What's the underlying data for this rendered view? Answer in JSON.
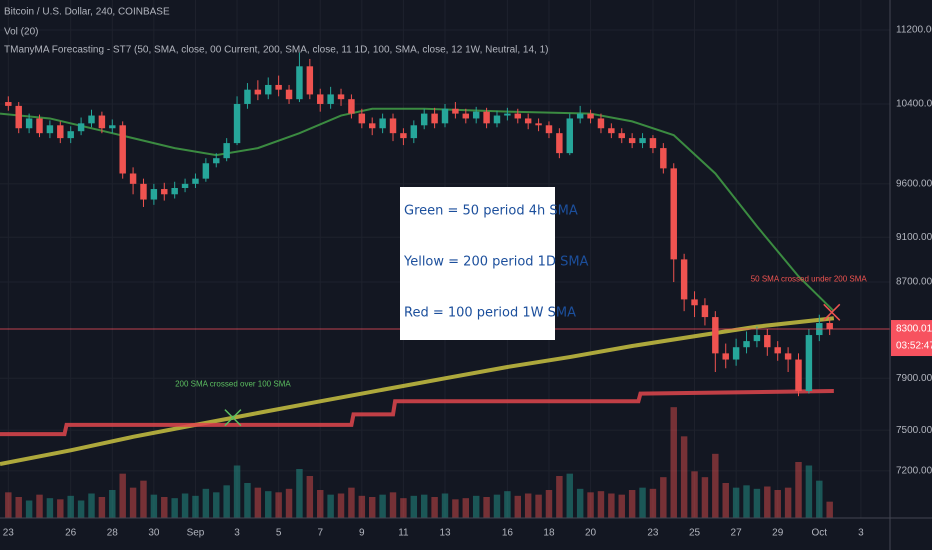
{
  "chart_data": {
    "type": "candlestick",
    "title": "Bitcoin / U.S. Dollar, 240, COINBASE",
    "indicators": [
      "Vol (20)",
      "TManyMA Forecasting - ST7 (50, SMA, close, 00 Current, 200, SMA, close, 11 1D, 100, SMA, close, 12 1W, Neutral, 14, 1)"
    ],
    "log_scale": true,
    "grid": true,
    "up_color": "#26a69a",
    "down_color": "#ef5350",
    "xlim": [
      -0.4,
      42.4
    ],
    "ylim": [
      6868,
      11542
    ],
    "volume_lim": [
      0,
      12000
    ],
    "yticks": [
      {
        "value": 7200,
        "label": "7200.00"
      },
      {
        "value": 7500,
        "label": "7500.00"
      },
      {
        "value": 7900,
        "label": "7900.00"
      },
      {
        "value": 8700,
        "label": "8700.00"
      },
      {
        "value": 9100,
        "label": "9100.00"
      },
      {
        "value": 9600,
        "label": "9600.00"
      },
      {
        "value": 10400,
        "label": "10400.00"
      },
      {
        "value": 11200,
        "label": "11200.00"
      }
    ],
    "xticks": [
      {
        "value": 0,
        "label": "23"
      },
      {
        "value": 3,
        "label": "26"
      },
      {
        "value": 5,
        "label": "28"
      },
      {
        "value": 7,
        "label": "30"
      },
      {
        "value": 9,
        "label": "Sep"
      },
      {
        "value": 11,
        "label": "3"
      },
      {
        "value": 13,
        "label": "5"
      },
      {
        "value": 15,
        "label": "7"
      },
      {
        "value": 17,
        "label": "9"
      },
      {
        "value": 19,
        "label": "11"
      },
      {
        "value": 21,
        "label": "13"
      },
      {
        "value": 24,
        "label": "16"
      },
      {
        "value": 26,
        "label": "18"
      },
      {
        "value": 28,
        "label": "20"
      },
      {
        "value": 31,
        "label": "23"
      },
      {
        "value": 33,
        "label": "25"
      },
      {
        "value": 35,
        "label": "27"
      },
      {
        "value": 37,
        "label": "29"
      },
      {
        "value": 39,
        "label": "Oct"
      },
      {
        "value": 41,
        "label": "3"
      }
    ],
    "x": [
      0,
      0.5,
      1,
      1.5,
      2,
      2.5,
      3,
      3.5,
      4,
      4.5,
      5,
      5.5,
      6,
      6.5,
      7,
      7.5,
      8,
      8.5,
      9,
      9.5,
      10,
      10.5,
      11,
      11.5,
      12,
      12.5,
      13,
      13.5,
      14,
      14.5,
      15,
      15.5,
      16,
      16.5,
      17,
      17.5,
      18,
      18.5,
      19,
      19.5,
      20,
      20.5,
      21,
      21.5,
      22,
      22.5,
      23,
      23.5,
      24,
      24.5,
      25,
      25.5,
      26,
      26.5,
      27,
      27.5,
      28,
      28.5,
      29,
      29.5,
      30,
      30.5,
      31,
      31.5,
      32,
      32.5,
      33,
      33.5,
      34,
      34.5,
      35,
      35.5,
      36,
      36.5,
      37,
      37.5,
      38,
      38.5,
      39,
      39.5
    ],
    "open": [
      10420,
      10380,
      10150,
      10250,
      10100,
      10180,
      10050,
      10120,
      10200,
      10280,
      10150,
      10180,
      9700,
      9600,
      9450,
      9550,
      9500,
      9560,
      9600,
      9650,
      9800,
      9850,
      10000,
      10400,
      10550,
      10500,
      10600,
      10550,
      10450,
      10800,
      10500,
      10400,
      10500,
      10450,
      10300,
      10200,
      10150,
      10250,
      10100,
      10050,
      10180,
      10300,
      10200,
      10350,
      10300,
      10250,
      10320,
      10200,
      10280,
      10300,
      10250,
      10200,
      10180,
      10100,
      9900,
      10250,
      10300,
      10250,
      10150,
      10100,
      10050,
      10000,
      10050,
      9950,
      9750,
      8900,
      8550,
      8500,
      8400,
      8100,
      8050,
      8150,
      8200,
      8250,
      8150,
      8100,
      8050,
      7800,
      8250,
      8350
    ],
    "high": [
      10480,
      10420,
      10300,
      10290,
      10230,
      10220,
      10170,
      10260,
      10340,
      10320,
      10240,
      10220,
      9760,
      9650,
      9600,
      9610,
      9620,
      9650,
      9700,
      9850,
      9900,
      10050,
      10480,
      10620,
      10650,
      10680,
      10700,
      10600,
      10950,
      10880,
      10560,
      10580,
      10560,
      10500,
      10350,
      10260,
      10300,
      10300,
      10150,
      10230,
      10350,
      10360,
      10400,
      10420,
      10350,
      10370,
      10360,
      10330,
      10360,
      10350,
      10300,
      10250,
      10220,
      10150,
      10300,
      10380,
      10340,
      10300,
      10200,
      10150,
      10100,
      10100,
      10080,
      10000,
      9800,
      8950,
      8620,
      8560,
      8450,
      8180,
      8220,
      8280,
      8320,
      8300,
      8200,
      8150,
      8100,
      8300,
      8420,
      8400
    ],
    "low": [
      10330,
      10100,
      10100,
      10060,
      10050,
      10000,
      10000,
      10080,
      10160,
      10100,
      10100,
      9650,
      9500,
      9380,
      9400,
      9440,
      9460,
      9520,
      9560,
      9620,
      9760,
      9820,
      9980,
      10350,
      10440,
      10450,
      10480,
      10400,
      10420,
      10450,
      10320,
      10350,
      10380,
      10250,
      10150,
      10080,
      10100,
      10020,
      9980,
      10000,
      10140,
      10150,
      10160,
      10250,
      10200,
      10200,
      10150,
      10160,
      10230,
      10200,
      10140,
      10120,
      10050,
      9850,
      9880,
      10200,
      10200,
      10100,
      10050,
      10000,
      9950,
      9950,
      9900,
      9700,
      8700,
      8450,
      8400,
      8330,
      7950,
      7980,
      8000,
      8100,
      8150,
      8080,
      8040,
      7950,
      7760,
      7780,
      8200,
      8250
    ],
    "close": [
      10380,
      10150,
      10250,
      10100,
      10180,
      10050,
      10120,
      10200,
      10280,
      10150,
      10180,
      9700,
      9600,
      9450,
      9550,
      9500,
      9560,
      9600,
      9650,
      9800,
      9850,
      10000,
      10400,
      10550,
      10500,
      10600,
      10550,
      10450,
      10800,
      10500,
      10400,
      10500,
      10450,
      10300,
      10200,
      10150,
      10250,
      10100,
      10050,
      10180,
      10300,
      10200,
      10350,
      10300,
      10250,
      10320,
      10200,
      10280,
      10300,
      10250,
      10200,
      10180,
      10100,
      9900,
      10250,
      10300,
      10250,
      10150,
      10100,
      10050,
      10000,
      10050,
      9950,
      9750,
      8900,
      8550,
      8500,
      8400,
      8100,
      8050,
      8150,
      8200,
      8250,
      8150,
      8100,
      8050,
      7800,
      8250,
      8350,
      8300
    ],
    "volume": [
      2200,
      1800,
      1500,
      2000,
      1700,
      1600,
      1900,
      1500,
      2100,
      1800,
      2400,
      3800,
      2600,
      3200,
      2000,
      1800,
      1700,
      2100,
      1900,
      2500,
      2200,
      2800,
      4500,
      3000,
      2600,
      2300,
      2200,
      2500,
      4200,
      3600,
      2400,
      2000,
      2100,
      2600,
      1900,
      1800,
      2000,
      2200,
      1700,
      1900,
      2000,
      1800,
      2100,
      1600,
      1700,
      1900,
      1800,
      2000,
      2300,
      1900,
      2100,
      2000,
      2400,
      3600,
      3800,
      2500,
      2200,
      2300,
      2100,
      2000,
      2400,
      2600,
      2500,
      3500,
      9500,
      7000,
      4000,
      3500,
      5500,
      3000,
      2600,
      2800,
      2500,
      2700,
      2400,
      2600,
      4800,
      4500,
      3200,
      1400
    ],
    "series": [
      {
        "name": "Green = 50 period 4h SMA",
        "color": "#43a047",
        "width": 2,
        "x": [
          -0.4,
          2,
          5,
          8,
          10,
          12,
          14,
          16,
          17.5,
          20,
          24,
          28,
          30,
          32,
          34,
          36,
          38,
          39.7
        ],
        "values": [
          10300,
          10250,
          10100,
          9950,
          9880,
          9950,
          10100,
          10280,
          10350,
          10350,
          10320,
          10300,
          10220,
          10080,
          9700,
          9200,
          8750,
          8450
        ]
      },
      {
        "name": "Yellow = 200 period 1D SMA",
        "color": "#c9c241",
        "width": 4,
        "x": [
          -0.4,
          3,
          6,
          9,
          12,
          15,
          18,
          21,
          24,
          27,
          30,
          33,
          36,
          39.7
        ],
        "values": [
          7250,
          7350,
          7450,
          7540,
          7630,
          7720,
          7810,
          7900,
          7990,
          8070,
          8160,
          8240,
          8320,
          8390
        ]
      },
      {
        "name": "Red = 100 period 1W SMA",
        "color": "#e0474c",
        "width": 4,
        "x": [
          -0.4,
          2.7,
          2.8,
          16.5,
          16.6,
          18.5,
          18.6,
          30.3,
          30.4,
          39.7
        ],
        "values": [
          7470,
          7470,
          7540,
          7540,
          7620,
          7620,
          7720,
          7720,
          7780,
          7800
        ]
      }
    ],
    "annotations": [
      {
        "text": "200 SMA crossed over 100 SMA",
        "x": 10.8,
        "y": 7595,
        "color": "#5cbf60"
      },
      {
        "text": "50 SMA crossed under 200 SMA",
        "x": 39.6,
        "y": 8440,
        "color": "#ef5350"
      }
    ],
    "last_price": 8300.01,
    "countdown": "03:52:47"
  }
}
